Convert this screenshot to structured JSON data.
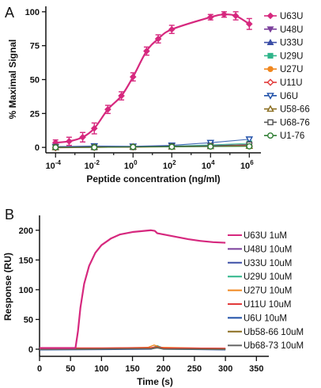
{
  "chart_data": [
    {
      "panel": "A",
      "type": "scatter",
      "xlabel": "Peptide concentration (ng/ml)",
      "ylabel": "% Maximal Signal",
      "xscale": "log",
      "xlim_log10": [
        -4.5,
        6.6
      ],
      "ylim": [
        -4,
        104
      ],
      "x_tick_labels": [
        "10-4",
        "10-2",
        "100",
        "102",
        "104",
        "106"
      ],
      "x_tick_exponents": [
        -4,
        -2,
        0,
        2,
        4,
        6
      ],
      "y_ticks": [
        0,
        25,
        50,
        75,
        100
      ],
      "legend_position": "right",
      "series": [
        {
          "name": "U63U",
          "color": "#d6287e",
          "marker": "diamond",
          "fit_curve": true,
          "points": [
            {
              "x_log10": -4,
              "y": 3.5,
              "err": 2
            },
            {
              "x_log10": -3.3,
              "y": 4.5,
              "err": 3
            },
            {
              "x_log10": -2.6,
              "y": 7.5,
              "err": 3.5
            },
            {
              "x_log10": -2,
              "y": 14,
              "err": 4
            },
            {
              "x_log10": -1.3,
              "y": 28,
              "err": 3
            },
            {
              "x_log10": -0.6,
              "y": 38,
              "err": 3
            },
            {
              "x_log10": 0,
              "y": 52,
              "err": 3
            },
            {
              "x_log10": 0.7,
              "y": 71,
              "err": 3
            },
            {
              "x_log10": 1.3,
              "y": 80,
              "err": 3
            },
            {
              "x_log10": 2,
              "y": 87,
              "err": 3
            },
            {
              "x_log10": 4,
              "y": 96,
              "err": 2
            },
            {
              "x_log10": 4.7,
              "y": 98,
              "err": 2
            },
            {
              "x_log10": 5.3,
              "y": 97,
              "err": 3
            },
            {
              "x_log10": 6,
              "y": 91,
              "err": 4
            }
          ]
        },
        {
          "name": "U48U",
          "color": "#7a3f9b",
          "marker": "triangle-down",
          "fit_curve": false,
          "points": [
            {
              "x_log10": -4,
              "y": 0.5
            },
            {
              "x_log10": -2,
              "y": 0.8
            },
            {
              "x_log10": 0,
              "y": 0.5
            },
            {
              "x_log10": 2,
              "y": 1.0
            },
            {
              "x_log10": 4,
              "y": 1.2
            },
            {
              "x_log10": 6,
              "y": 1.5
            }
          ]
        },
        {
          "name": "U33U",
          "color": "#3b4ea6",
          "marker": "triangle-up",
          "fit_curve": false,
          "points": [
            {
              "x_log10": -4,
              "y": 0.3
            },
            {
              "x_log10": -2,
              "y": 0.5
            },
            {
              "x_log10": 0,
              "y": 0.4
            },
            {
              "x_log10": 2,
              "y": 0.8
            },
            {
              "x_log10": 4,
              "y": 1.5
            },
            {
              "x_log10": 6,
              "y": 2.0
            }
          ]
        },
        {
          "name": "U29U",
          "color": "#2fb58a",
          "marker": "square",
          "fit_curve": false,
          "points": [
            {
              "x_log10": -4,
              "y": 0.0
            },
            {
              "x_log10": -2,
              "y": 0.4
            },
            {
              "x_log10": 0,
              "y": 0.6
            },
            {
              "x_log10": 2,
              "y": 0.9
            },
            {
              "x_log10": 4,
              "y": 1.8
            },
            {
              "x_log10": 6,
              "y": 3.0
            }
          ]
        },
        {
          "name": "U27U",
          "color": "#f0871f",
          "marker": "circle",
          "fit_curve": false,
          "points": [
            {
              "x_log10": -4,
              "y": 0.2
            },
            {
              "x_log10": -2,
              "y": 0.3
            },
            {
              "x_log10": 0,
              "y": 0.1
            },
            {
              "x_log10": 2,
              "y": 0.5
            },
            {
              "x_log10": 4,
              "y": 1.0
            },
            {
              "x_log10": 6,
              "y": 1.4
            }
          ]
        },
        {
          "name": "U11U",
          "color": "#e23a3a",
          "marker": "diamond-open",
          "fit_curve": false,
          "points": [
            {
              "x_log10": -4,
              "y": -0.3
            },
            {
              "x_log10": -2,
              "y": 0.0
            },
            {
              "x_log10": 0,
              "y": 0.3
            },
            {
              "x_log10": 2,
              "y": 0.6
            },
            {
              "x_log10": 4,
              "y": 0.9
            },
            {
              "x_log10": 6,
              "y": 1.2
            }
          ]
        },
        {
          "name": "U6U",
          "color": "#1e4fa8",
          "marker": "triangle-down-open",
          "fit_curve": false,
          "points": [
            {
              "x_log10": -4,
              "y": 0.5
            },
            {
              "x_log10": -2,
              "y": 1.0
            },
            {
              "x_log10": 0,
              "y": 0.8
            },
            {
              "x_log10": 2,
              "y": 1.5
            },
            {
              "x_log10": 4,
              "y": 3.5
            },
            {
              "x_log10": 6,
              "y": 6.0
            }
          ]
        },
        {
          "name": "U58-66",
          "color": "#8a6d1f",
          "marker": "triangle-up-open",
          "fit_curve": false,
          "points": [
            {
              "x_log10": -4,
              "y": 0.0
            },
            {
              "x_log10": -2,
              "y": 0.2
            },
            {
              "x_log10": 0,
              "y": 0.4
            },
            {
              "x_log10": 2,
              "y": 0.5
            },
            {
              "x_log10": 4,
              "y": 0.8
            },
            {
              "x_log10": 6,
              "y": 1.0
            }
          ]
        },
        {
          "name": "U68-76",
          "color": "#555555",
          "marker": "square-open",
          "fit_curve": false,
          "points": [
            {
              "x_log10": -4,
              "y": 0.3
            },
            {
              "x_log10": -2,
              "y": 0.1
            },
            {
              "x_log10": 0,
              "y": 0.2
            },
            {
              "x_log10": 2,
              "y": 0.7
            },
            {
              "x_log10": 4,
              "y": 1.1
            },
            {
              "x_log10": 6,
              "y": 2.2
            }
          ]
        },
        {
          "name": "U1-76",
          "color": "#2e7d32",
          "marker": "circle-open",
          "fit_curve": false,
          "points": [
            {
              "x_log10": -4,
              "y": 0.0
            },
            {
              "x_log10": -2,
              "y": 0.0
            },
            {
              "x_log10": 0,
              "y": 0.3
            },
            {
              "x_log10": 2,
              "y": 0.4
            },
            {
              "x_log10": 4,
              "y": 0.6
            },
            {
              "x_log10": 6,
              "y": 0.8
            }
          ]
        }
      ]
    },
    {
      "panel": "B",
      "type": "line",
      "xlabel": "Time (s)",
      "ylabel": "Response (RU)",
      "xlim": [
        0,
        370
      ],
      "ylim": [
        -12,
        225
      ],
      "x_ticks": [
        0,
        50,
        100,
        150,
        200,
        250,
        300,
        350
      ],
      "y_ticks": [
        0,
        50,
        100,
        150,
        200
      ],
      "legend_position": "right",
      "series": [
        {
          "name": "U63U 1uM",
          "color": "#d6287e",
          "points": [
            [
              0,
              2
            ],
            [
              58,
              2
            ],
            [
              62,
              30
            ],
            [
              66,
              70
            ],
            [
              72,
              110
            ],
            [
              80,
              140
            ],
            [
              90,
              162
            ],
            [
              100,
              175
            ],
            [
              115,
              186
            ],
            [
              130,
              193
            ],
            [
              150,
              197
            ],
            [
              170,
              199
            ],
            [
              180,
              200
            ],
            [
              186,
              199
            ],
            [
              190,
              195
            ],
            [
              200,
              193
            ],
            [
              220,
              189
            ],
            [
              240,
              185
            ],
            [
              260,
              182
            ],
            [
              280,
              180
            ],
            [
              300,
              179
            ]
          ]
        },
        {
          "name": "U48U 10uM",
          "color": "#7a3f9b",
          "points": [
            [
              0,
              1
            ],
            [
              100,
              1.5
            ],
            [
              180,
              2
            ],
            [
              190,
              5
            ],
            [
              200,
              2
            ],
            [
              300,
              1
            ]
          ]
        },
        {
          "name": "U33U 10uM",
          "color": "#3b4ea6",
          "points": [
            [
              0,
              0.5
            ],
            [
              100,
              1
            ],
            [
              180,
              1.5
            ],
            [
              190,
              4
            ],
            [
              200,
              1
            ],
            [
              300,
              0.5
            ]
          ]
        },
        {
          "name": "U29U 10uM",
          "color": "#2fb58a",
          "points": [
            [
              0,
              0
            ],
            [
              100,
              0.5
            ],
            [
              180,
              1
            ],
            [
              190,
              6
            ],
            [
              200,
              1.5
            ],
            [
              300,
              0
            ]
          ]
        },
        {
          "name": "U27U 10uM",
          "color": "#f0871f",
          "points": [
            [
              0,
              1
            ],
            [
              100,
              1.5
            ],
            [
              175,
              3
            ],
            [
              185,
              7
            ],
            [
              195,
              3
            ],
            [
              300,
              1
            ]
          ]
        },
        {
          "name": "U11U 10uM",
          "color": "#e23a3a",
          "points": [
            [
              0,
              2
            ],
            [
              100,
              2
            ],
            [
              180,
              2.5
            ],
            [
              190,
              4
            ],
            [
              200,
              2
            ],
            [
              300,
              1.5
            ]
          ]
        },
        {
          "name": "U6U 10uM",
          "color": "#1e4fa8",
          "points": [
            [
              0,
              -1
            ],
            [
              100,
              -0.5
            ],
            [
              180,
              0
            ],
            [
              190,
              3
            ],
            [
              200,
              0
            ],
            [
              300,
              -1
            ]
          ]
        },
        {
          "name": "Ub58-66 10uM",
          "color": "#8a6d1f",
          "points": [
            [
              0,
              0
            ],
            [
              100,
              0.5
            ],
            [
              180,
              1
            ],
            [
              190,
              3
            ],
            [
              200,
              0.5
            ],
            [
              300,
              0
            ]
          ]
        },
        {
          "name": "Ub68-73 10uM",
          "color": "#666666",
          "points": [
            [
              0,
              -0.5
            ],
            [
              100,
              0
            ],
            [
              180,
              0.5
            ],
            [
              190,
              2
            ],
            [
              200,
              0
            ],
            [
              300,
              -0.5
            ]
          ]
        }
      ]
    }
  ],
  "panels": {
    "a_label": "A",
    "b_label": "B"
  },
  "axes_a": {
    "title_x": "Peptide concentration (ng/ml)",
    "title_y": "% Maximal Signal",
    "yticks": [
      "0",
      "25",
      "50",
      "75",
      "100"
    ],
    "xtick_base": "10",
    "xtick_exps": [
      "-4",
      "-2",
      "0",
      "2",
      "4",
      "6"
    ]
  },
  "axes_b": {
    "title_x": "Time (s)",
    "title_y": "Response (RU)",
    "yticks": [
      "0",
      "50",
      "100",
      "150",
      "200"
    ],
    "xticks": [
      "0",
      "50",
      "100",
      "150",
      "200",
      "250",
      "300",
      "350"
    ]
  },
  "legend_a": [
    "U63U",
    "U48U",
    "U33U",
    "U29U",
    "U27U",
    "U11U",
    "U6U",
    "U58-66",
    "U68-76",
    "U1-76"
  ],
  "legend_b": [
    "U63U 1uM",
    "U48U 10uM",
    "U33U 10uM",
    "U29U 10uM",
    "U27U 10uM",
    "U11U 10uM",
    "U6U 10uM",
    "Ub58-66 10uM",
    "Ub68-73 10uM"
  ]
}
